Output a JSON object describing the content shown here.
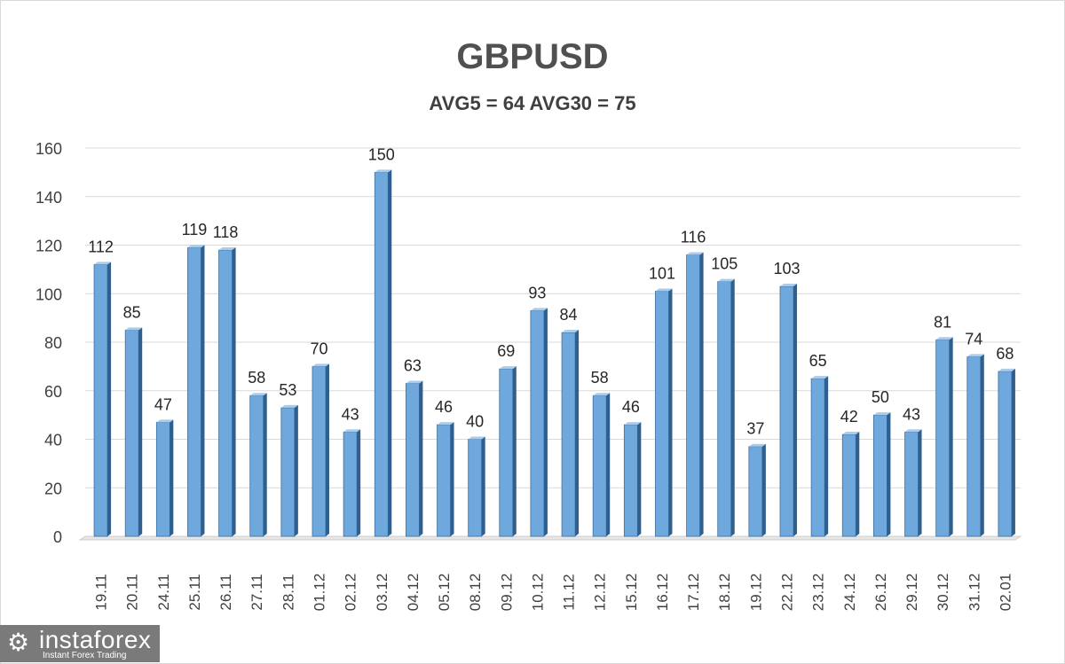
{
  "chart_data": {
    "type": "bar",
    "title": "GBPUSD",
    "subtitle": "AVG5 = 64 AVG30 = 75",
    "categories": [
      "19.11",
      "20.11",
      "24.11",
      "25.11",
      "26.11",
      "27.11",
      "28.11",
      "01.12",
      "02.12",
      "03.12",
      "04.12",
      "05.12",
      "08.12",
      "09.12",
      "10.12",
      "11.12",
      "12.12",
      "15.12",
      "16.12",
      "17.12",
      "18.12",
      "19.12",
      "22.12",
      "23.12",
      "24.12",
      "26.12",
      "29.12",
      "30.12",
      "31.12",
      "02.01"
    ],
    "values": [
      112,
      85,
      47,
      119,
      118,
      58,
      53,
      70,
      43,
      150,
      63,
      46,
      40,
      69,
      93,
      84,
      58,
      46,
      101,
      116,
      105,
      37,
      103,
      65,
      42,
      50,
      43,
      81,
      74,
      68
    ],
    "ylim": [
      0,
      160
    ],
    "yticks": [
      0,
      20,
      40,
      60,
      80,
      100,
      120,
      140,
      160
    ],
    "grid": true,
    "bar_color": "#6fa8dc",
    "data_labels": true
  },
  "logo": {
    "name": "instaforex",
    "tagline": "Instant Forex Trading"
  }
}
